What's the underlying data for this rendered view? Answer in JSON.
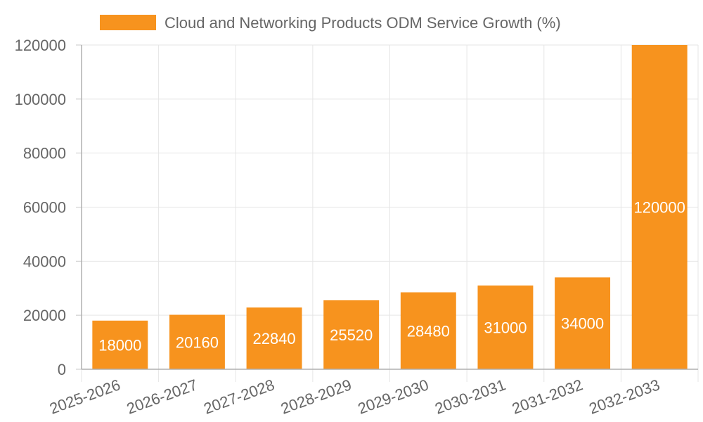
{
  "chart_data": {
    "type": "bar",
    "title": "",
    "xlabel": "",
    "ylabel": "",
    "categories": [
      "2025-2026",
      "2026-2027",
      "2027-2028",
      "2028-2029",
      "2029-2030",
      "2030-2031",
      "2031-2032",
      "2032-2033"
    ],
    "series": [
      {
        "name": "Cloud and Networking Products ODM Service Growth (%)",
        "values": [
          18000,
          20160,
          22840,
          25520,
          28480,
          31000,
          34000,
          120000
        ],
        "color": "#f7931e"
      }
    ],
    "ylim": [
      0,
      120000
    ],
    "yticks": [
      0,
      20000,
      40000,
      60000,
      80000,
      100000,
      120000
    ],
    "grid": true,
    "legend_position": "top-center",
    "data_labels": true
  }
}
